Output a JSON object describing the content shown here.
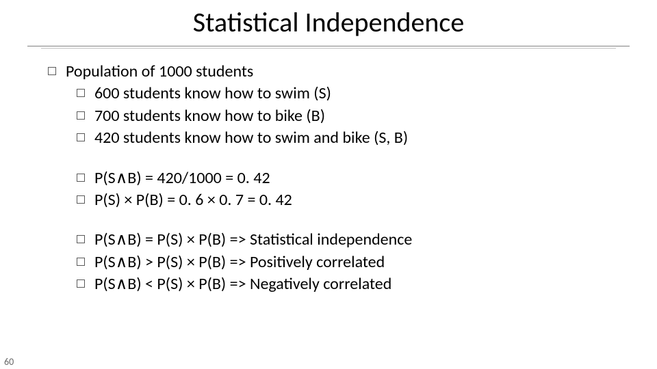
{
  "pageNumber": "60",
  "title": "Statistical Independence",
  "blocks": [
    {
      "lead": "Population of 1000 students",
      "items": [
        "600 students know how to swim (S)",
        "700 students know how to bike (B)",
        "420 students know how to swim and bike (S, B)"
      ]
    },
    {
      "lead": null,
      "items": [
        "P(S∧B) = 420/1000 = 0. 42",
        "P(S) × P(B) = 0. 6 × 0. 7 = 0. 42"
      ]
    },
    {
      "lead": null,
      "items": [
        "P(S∧B) = P(S) × P(B) => Statistical independence",
        "P(S∧B) > P(S) × P(B) => Positively correlated",
        "P(S∧B) < P(S) × P(B) => Negatively correlated"
      ]
    }
  ]
}
